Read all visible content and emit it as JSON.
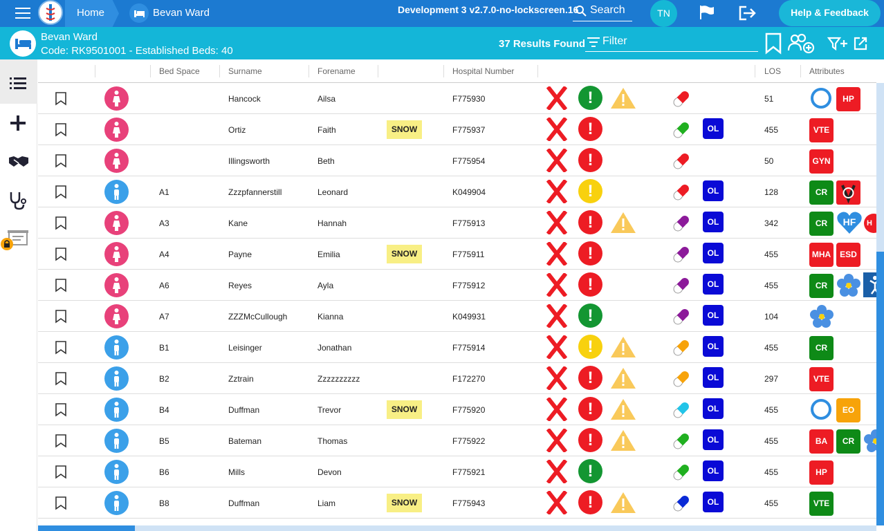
{
  "topbar": {
    "home_label": "Home",
    "ward_label": "Bevan Ward",
    "build": "Development 3 v2.7.0-no-lockscreen.16",
    "search_label": "Search",
    "avatar_initials": "TN",
    "help_label": "Help & Feedback"
  },
  "wardbar": {
    "name": "Bevan Ward",
    "code_line": "Code: RK9501001 - Established Beds: 40",
    "results": "37 Results Found",
    "filter_label": "Filter"
  },
  "colors": {
    "primary": "#1c7ad1",
    "secondary": "#14b6d8",
    "female": "#e8417a",
    "male": "#3ba0e9",
    "snow": "#f8ef85",
    "ol": "#0a0ad6"
  },
  "columns": [
    "Bed Space",
    "Surname",
    "Forename",
    "Hospital Number",
    "LOS",
    "Attributes"
  ],
  "rows": [
    {
      "gender": "female",
      "bed": "",
      "surname": "Hancock",
      "forename": "Ailsa",
      "snow": "",
      "hosp": "F775930",
      "status": "green",
      "warning": true,
      "pill": "red",
      "ol": false,
      "los": "51",
      "attrs": [
        {
          "kind": "ring"
        },
        {
          "kind": "badge",
          "label": "HP",
          "color": "red"
        }
      ]
    },
    {
      "gender": "female",
      "bed": "",
      "surname": "Ortiz",
      "forename": "Faith",
      "snow": "SNOW",
      "hosp": "F775937",
      "status": "red",
      "warning": false,
      "pill": "green",
      "ol": true,
      "los": "455",
      "attrs": [
        {
          "kind": "badge",
          "label": "VTE",
          "color": "red"
        }
      ]
    },
    {
      "gender": "female",
      "bed": "",
      "surname": "Illingsworth",
      "forename": "Beth",
      "snow": "",
      "hosp": "F775954",
      "status": "red",
      "warning": false,
      "pill": "red",
      "ol": false,
      "los": "50",
      "attrs": [
        {
          "kind": "badge",
          "label": "GYN",
          "color": "red"
        }
      ]
    },
    {
      "gender": "male",
      "bed": "A1",
      "surname": "Zzzpfannerstill",
      "forename": "Leonard",
      "snow": "",
      "hosp": "K049904",
      "status": "yellow",
      "warning": false,
      "pill": "red",
      "ol": true,
      "los": "128",
      "attrs": [
        {
          "kind": "badge",
          "label": "CR",
          "color": "green"
        },
        {
          "kind": "vicon"
        }
      ]
    },
    {
      "gender": "female",
      "bed": "A3",
      "surname": "Kane",
      "forename": "Hannah",
      "snow": "",
      "hosp": "F775913",
      "status": "red",
      "warning": true,
      "pill": "purple",
      "ol": true,
      "los": "342",
      "attrs": [
        {
          "kind": "badge",
          "label": "CR",
          "color": "green"
        },
        {
          "kind": "heart",
          "label": "HF"
        },
        {
          "kind": "partial",
          "label": "H"
        }
      ]
    },
    {
      "gender": "female",
      "bed": "A4",
      "surname": "Payne",
      "forename": "Emilia",
      "snow": "SNOW",
      "hosp": "F775911",
      "status": "red",
      "warning": false,
      "pill": "purple",
      "ol": true,
      "los": "455",
      "attrs": [
        {
          "kind": "badge",
          "label": "MHA",
          "color": "red"
        },
        {
          "kind": "badge",
          "label": "ESD",
          "color": "red"
        }
      ]
    },
    {
      "gender": "female",
      "bed": "A6",
      "surname": "Reyes",
      "forename": "Ayla",
      "snow": "",
      "hosp": "F775912",
      "status": "red",
      "warning": false,
      "pill": "purple",
      "ol": true,
      "los": "455",
      "attrs": [
        {
          "kind": "badge",
          "label": "CR",
          "color": "green"
        },
        {
          "kind": "flower"
        },
        {
          "kind": "bluebox"
        }
      ]
    },
    {
      "gender": "female",
      "bed": "A7",
      "surname": "ZZZMcCullough",
      "forename": "Kianna",
      "snow": "",
      "hosp": "K049931",
      "status": "green",
      "warning": false,
      "pill": "purple",
      "ol": true,
      "los": "104",
      "attrs": [
        {
          "kind": "flower"
        }
      ]
    },
    {
      "gender": "male",
      "bed": "B1",
      "surname": "Leisinger",
      "forename": "Jonathan",
      "snow": "",
      "hosp": "F775914",
      "status": "yellow",
      "warning": true,
      "pill": "orange",
      "ol": true,
      "los": "455",
      "attrs": [
        {
          "kind": "badge",
          "label": "CR",
          "color": "green"
        }
      ]
    },
    {
      "gender": "male",
      "bed": "B2",
      "surname": "Zztrain",
      "forename": "Zzzzzzzzzz",
      "snow": "",
      "hosp": "F172270",
      "status": "red",
      "warning": true,
      "pill": "orange",
      "ol": true,
      "los": "297",
      "attrs": [
        {
          "kind": "badge",
          "label": "VTE",
          "color": "red"
        }
      ]
    },
    {
      "gender": "male",
      "bed": "B4",
      "surname": "Duffman",
      "forename": "Trevor",
      "snow": "SNOW",
      "hosp": "F775920",
      "status": "red",
      "warning": true,
      "pill": "cyan",
      "ol": true,
      "los": "455",
      "attrs": [
        {
          "kind": "ring"
        },
        {
          "kind": "badge",
          "label": "EO",
          "color": "orange"
        }
      ]
    },
    {
      "gender": "male",
      "bed": "B5",
      "surname": "Bateman",
      "forename": "Thomas",
      "snow": "",
      "hosp": "F775922",
      "status": "red",
      "warning": true,
      "pill": "green",
      "ol": true,
      "los": "455",
      "attrs": [
        {
          "kind": "badge",
          "label": "BA",
          "color": "red"
        },
        {
          "kind": "badge",
          "label": "CR",
          "color": "green"
        },
        {
          "kind": "flower"
        }
      ]
    },
    {
      "gender": "male",
      "bed": "B6",
      "surname": "Mills",
      "forename": "Devon",
      "snow": "",
      "hosp": "F775921",
      "status": "green",
      "warning": false,
      "pill": "green",
      "ol": true,
      "los": "455",
      "attrs": [
        {
          "kind": "badge",
          "label": "HP",
          "color": "red"
        }
      ]
    },
    {
      "gender": "male",
      "bed": "B8",
      "surname": "Duffman",
      "forename": "Liam",
      "snow": "SNOW",
      "hosp": "F775943",
      "status": "red",
      "warning": true,
      "pill": "blue",
      "ol": true,
      "los": "455",
      "attrs": [
        {
          "kind": "badge",
          "label": "VTE",
          "color": "green"
        }
      ]
    }
  ],
  "ol_label": "OL"
}
